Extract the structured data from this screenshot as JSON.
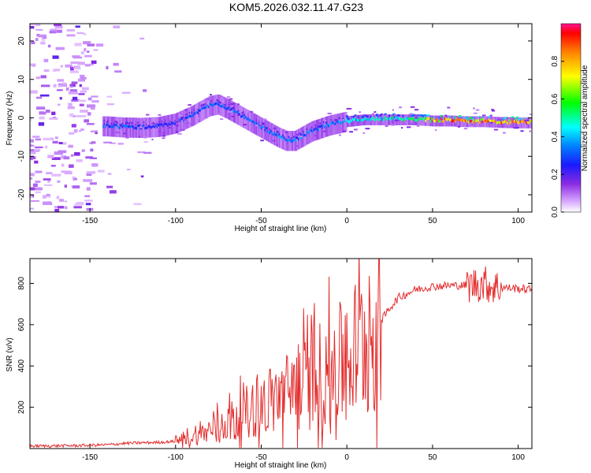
{
  "figure": {
    "title": "KOM5.2026.032.11.47.G23"
  },
  "chart_data": [
    {
      "type": "heatmap",
      "title": "KOM5.2026.032.11.47.G23",
      "xlabel": "Height of straight line (km)",
      "ylabel": "Frequency (Hz)",
      "xlim": [
        -185,
        108
      ],
      "ylim": [
        -24.5,
        24.5
      ],
      "xticks": [
        -150,
        -100,
        -50,
        0,
        50,
        100
      ],
      "yticks": [
        -20,
        -10,
        0,
        10,
        20
      ],
      "colorbar": {
        "label": "Normalized spectral amplitude",
        "range": [
          0,
          1
        ],
        "ticks": [
          0.0,
          0.2,
          0.4,
          0.6,
          0.8
        ]
      },
      "ridge_x": [
        -140,
        -130,
        -120,
        -110,
        -100,
        -90,
        -80,
        -75,
        -70,
        -60,
        -50,
        -40,
        -35,
        -30,
        -20,
        -10,
        0,
        10,
        20,
        30,
        40,
        50,
        60,
        70,
        80,
        90,
        100,
        108
      ],
      "ridge_freq": [
        -2.2,
        -2.5,
        -2.6,
        -2.4,
        -1.5,
        0.5,
        3.0,
        3.5,
        2.5,
        0.0,
        -2.5,
        -5.0,
        -6.0,
        -6.0,
        -3.5,
        -2.0,
        -1.0,
        -0.5,
        -0.5,
        -0.5,
        -0.5,
        -0.8,
        -0.8,
        -1.0,
        -1.0,
        -1.2,
        -1.3,
        -1.3
      ],
      "ridge_amp": [
        0.35,
        0.35,
        0.3,
        0.3,
        0.3,
        0.35,
        0.35,
        0.35,
        0.35,
        0.35,
        0.4,
        0.38,
        0.38,
        0.38,
        0.35,
        0.4,
        0.45,
        0.5,
        0.5,
        0.55,
        0.55,
        0.8,
        0.95,
        0.95,
        0.9,
        0.9,
        0.9,
        0.9
      ],
      "noise_region_x": [
        -185,
        -115
      ]
    },
    {
      "type": "line",
      "xlabel": "Height of straight line (km)",
      "ylabel": "SNR (v/v)",
      "xlim": [
        -185,
        108
      ],
      "ylim": [
        0,
        920
      ],
      "xticks": [
        -150,
        -100,
        -50,
        0,
        50,
        100
      ],
      "yticks": [
        200,
        400,
        600,
        800
      ],
      "series": [
        {
          "name": "SNR",
          "color": "#e32d2d",
          "x": [
            -185,
            -160,
            -140,
            -130,
            -120,
            -110,
            -100,
            -95,
            -90,
            -85,
            -80,
            -75,
            -70,
            -65,
            -60,
            -55,
            -50,
            -45,
            -40,
            -35,
            -30,
            -25,
            -20,
            -15,
            -10,
            -5,
            0,
            5,
            10,
            15,
            20,
            25,
            30,
            40,
            50,
            60,
            70,
            75,
            80,
            85,
            90,
            100,
            108
          ],
          "y": [
            12,
            14,
            18,
            25,
            28,
            30,
            35,
            45,
            55,
            70,
            90,
            110,
            130,
            150,
            170,
            190,
            210,
            230,
            250,
            270,
            300,
            320,
            340,
            360,
            380,
            400,
            440,
            480,
            520,
            560,
            620,
            680,
            730,
            770,
            785,
            790,
            790,
            795,
            800,
            785,
            780,
            775,
            770
          ]
        }
      ]
    }
  ]
}
